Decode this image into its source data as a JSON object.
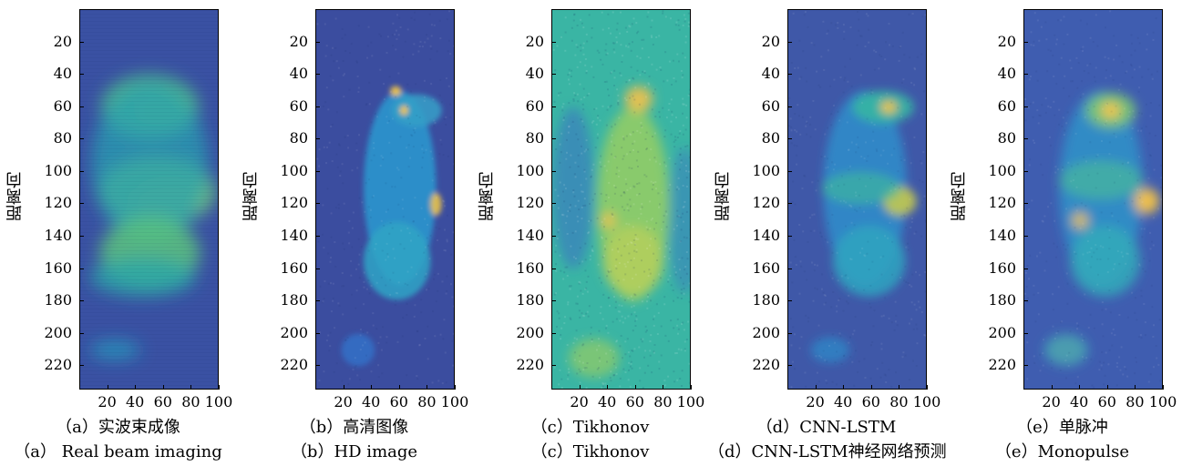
{
  "panels": [
    {
      "ylabel": "距离向",
      "caption_cn": "（a）实波束成像",
      "caption_en": "（a） Real beam imaging",
      "style": "realbeam",
      "background": "#3a51a3",
      "blobs": [
        {
          "x": 60,
          "y": 62,
          "rx": 22,
          "ry": 11,
          "color": "#f9c93c",
          "opacity": 0.95
        },
        {
          "x": 50,
          "y": 60,
          "rx": 35,
          "ry": 20,
          "color": "#4dbd8a",
          "opacity": 0.9
        },
        {
          "x": 65,
          "y": 118,
          "rx": 28,
          "ry": 12,
          "color": "#f4c447",
          "opacity": 0.9
        },
        {
          "x": 55,
          "y": 112,
          "rx": 42,
          "ry": 22,
          "color": "#6cc67a",
          "opacity": 0.9
        },
        {
          "x": 50,
          "y": 95,
          "rx": 42,
          "ry": 50,
          "color": "#2aa0b2",
          "opacity": 0.75
        },
        {
          "x": 50,
          "y": 150,
          "rx": 36,
          "ry": 22,
          "color": "#5cc47e",
          "opacity": 0.85
        },
        {
          "x": 45,
          "y": 165,
          "rx": 38,
          "ry": 12,
          "color": "#2aa7a9",
          "opacity": 0.8
        },
        {
          "x": 25,
          "y": 210,
          "rx": 18,
          "ry": 6,
          "color": "#23a2c0",
          "opacity": 0.7
        }
      ]
    },
    {
      "ylabel": "距离向",
      "caption_cn": "（b）高清图像",
      "caption_en": "（b）HD image",
      "style": "hd",
      "background": "#3b4d9f",
      "blobs": [
        {
          "x": 60,
          "y": 110,
          "rx": 26,
          "ry": 60,
          "color": "#2a9ad0",
          "opacity": 0.85
        },
        {
          "x": 58,
          "y": 155,
          "rx": 24,
          "ry": 24,
          "color": "#30a5c6",
          "opacity": 0.85
        },
        {
          "x": 72,
          "y": 62,
          "rx": 18,
          "ry": 10,
          "color": "#35a0c8",
          "opacity": 0.85
        },
        {
          "x": 57,
          "y": 50,
          "rx": 4,
          "ry": 3,
          "color": "#f7c844",
          "opacity": 0.9
        },
        {
          "x": 63,
          "y": 62,
          "rx": 3,
          "ry": 3,
          "color": "#f7c844",
          "opacity": 0.9
        },
        {
          "x": 86,
          "y": 120,
          "rx": 4,
          "ry": 7,
          "color": "#e9c24b",
          "opacity": 0.9
        },
        {
          "x": 30,
          "y": 210,
          "rx": 12,
          "ry": 10,
          "color": "#3076cc",
          "opacity": 0.75
        }
      ]
    },
    {
      "ylabel": "距离向",
      "caption_cn": "（c）Tikhonov",
      "caption_en": "（c）Tikhonov",
      "style": "tikhonov",
      "background": "#3ab5a4",
      "blobs": [
        {
          "x": 15,
          "y": 110,
          "rx": 15,
          "ry": 50,
          "color": "#3d70c4",
          "opacity": 0.55
        },
        {
          "x": 95,
          "y": 130,
          "rx": 12,
          "ry": 45,
          "color": "#3b70c5",
          "opacity": 0.45
        },
        {
          "x": 58,
          "y": 120,
          "rx": 26,
          "ry": 60,
          "color": "#9ccf5e",
          "opacity": 0.8
        },
        {
          "x": 58,
          "y": 155,
          "rx": 22,
          "ry": 22,
          "color": "#b8d05b",
          "opacity": 0.8
        },
        {
          "x": 62,
          "y": 55,
          "rx": 10,
          "ry": 8,
          "color": "#f2c14a",
          "opacity": 0.9
        },
        {
          "x": 40,
          "y": 130,
          "rx": 6,
          "ry": 5,
          "color": "#f1c350",
          "opacity": 0.8
        },
        {
          "x": 30,
          "y": 215,
          "rx": 18,
          "ry": 12,
          "color": "#96cc64",
          "opacity": 0.7
        }
      ]
    },
    {
      "ylabel": "距离向",
      "caption_cn": "（d）CNN-LSTM",
      "caption_en": "（d）CNN-LSTM神经网络预测",
      "style": "cnn",
      "background": "#3f58a8",
      "blobs": [
        {
          "x": 55,
          "y": 110,
          "rx": 30,
          "ry": 60,
          "color": "#2d8ecb",
          "opacity": 0.85
        },
        {
          "x": 58,
          "y": 155,
          "rx": 26,
          "ry": 22,
          "color": "#2ea4c0",
          "opacity": 0.85
        },
        {
          "x": 68,
          "y": 60,
          "rx": 22,
          "ry": 10,
          "color": "#37b6a3",
          "opacity": 0.9
        },
        {
          "x": 72,
          "y": 60,
          "rx": 6,
          "ry": 4,
          "color": "#f4c63f",
          "opacity": 0.9
        },
        {
          "x": 80,
          "y": 118,
          "rx": 12,
          "ry": 9,
          "color": "#c4c94f",
          "opacity": 0.9
        },
        {
          "x": 52,
          "y": 110,
          "rx": 28,
          "ry": 10,
          "color": "#3db59f",
          "opacity": 0.7
        },
        {
          "x": 30,
          "y": 210,
          "rx": 14,
          "ry": 8,
          "color": "#2b8ac8",
          "opacity": 0.75
        }
      ]
    },
    {
      "ylabel": "距离向",
      "caption_cn": "（e）单脉冲",
      "caption_en": "（e）Monopulse",
      "style": "monopulse",
      "background": "#3f5db0",
      "blobs": [
        {
          "x": 55,
          "y": 110,
          "rx": 30,
          "ry": 60,
          "color": "#2e93c9",
          "opacity": 0.85
        },
        {
          "x": 58,
          "y": 155,
          "rx": 25,
          "ry": 22,
          "color": "#32aaba",
          "opacity": 0.85
        },
        {
          "x": 62,
          "y": 62,
          "rx": 18,
          "ry": 11,
          "color": "#7ac774",
          "opacity": 0.9
        },
        {
          "x": 62,
          "y": 62,
          "rx": 7,
          "ry": 5,
          "color": "#f3c64a",
          "opacity": 0.95
        },
        {
          "x": 88,
          "y": 118,
          "rx": 9,
          "ry": 8,
          "color": "#f5c347",
          "opacity": 0.95
        },
        {
          "x": 40,
          "y": 130,
          "rx": 6,
          "ry": 5,
          "color": "#f0c34e",
          "opacity": 0.85
        },
        {
          "x": 55,
          "y": 105,
          "rx": 30,
          "ry": 12,
          "color": "#48b99b",
          "opacity": 0.7
        },
        {
          "x": 30,
          "y": 210,
          "rx": 14,
          "ry": 9,
          "color": "#f2c24d",
          "opacity": 0.45
        },
        {
          "x": 30,
          "y": 210,
          "rx": 16,
          "ry": 10,
          "color": "#2ea4c2",
          "opacity": 0.7
        }
      ]
    }
  ],
  "chart_data": [
    {
      "type": "heatmap",
      "title": "（a）实波束成像 （a） Real beam imaging",
      "ylabel": "距离向",
      "xlim": [
        0,
        100
      ],
      "ylim": [
        235,
        0
      ],
      "xticks": [
        20,
        40,
        60,
        80,
        100
      ],
      "yticks": [
        20,
        40,
        60,
        80,
        100,
        120,
        140,
        160,
        180,
        200,
        220
      ]
    },
    {
      "type": "heatmap",
      "title": "（b）高清图像 （b）HD image",
      "ylabel": "距离向",
      "xlim": [
        0,
        100
      ],
      "ylim": [
        235,
        0
      ],
      "xticks": [
        20,
        40,
        60,
        80,
        100
      ],
      "yticks": [
        20,
        40,
        60,
        80,
        100,
        120,
        140,
        160,
        180,
        200,
        220
      ]
    },
    {
      "type": "heatmap",
      "title": "（c）Tikhonov （c）Tikhonov",
      "ylabel": "距离向",
      "xlim": [
        0,
        100
      ],
      "ylim": [
        235,
        0
      ],
      "xticks": [
        20,
        40,
        60,
        80,
        100
      ],
      "yticks": [
        20,
        40,
        60,
        80,
        100,
        120,
        140,
        160,
        180,
        200,
        220
      ]
    },
    {
      "type": "heatmap",
      "title": "（d）CNN-LSTM （d）CNN-LSTM神经网络预测",
      "ylabel": "距离向",
      "xlim": [
        0,
        100
      ],
      "ylim": [
        235,
        0
      ],
      "xticks": [
        20,
        40,
        60,
        80,
        100
      ],
      "yticks": [
        20,
        40,
        60,
        80,
        100,
        120,
        140,
        160,
        180,
        200,
        220
      ]
    },
    {
      "type": "heatmap",
      "title": "（e）单脉冲 （e）Monopulse",
      "ylabel": "距离向",
      "xlim": [
        0,
        100
      ],
      "ylim": [
        235,
        0
      ],
      "xticks": [
        20,
        40,
        60,
        80,
        100
      ],
      "yticks": [
        20,
        40,
        60,
        80,
        100,
        120,
        140,
        160,
        180,
        200,
        220
      ]
    }
  ]
}
